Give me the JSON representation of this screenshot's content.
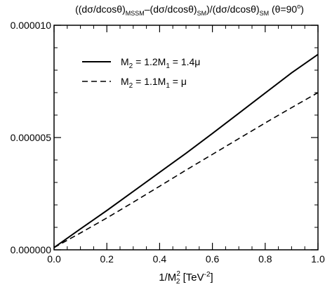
{
  "chart_data": {
    "type": "line",
    "title": {
      "open": "((dσ/dcosθ)",
      "sub_mssm": "MSSM",
      "mid": "–(dσ/dcosθ)",
      "sub_sm1": "SM",
      "div": ")/(dσ/dcosθ)",
      "sub_sm2": "SM",
      "cond_open": "(θ=90",
      "cond_sup": "o",
      "cond_close": ")"
    },
    "xlabel": {
      "main": "1/M",
      "sub": "2",
      "sup": "2",
      "units_open": " [TeV",
      "units_sup": "-2",
      "units_close": "]"
    },
    "xlim": [
      0.0,
      1.0
    ],
    "ylim": [
      0.0,
      1e-05
    ],
    "x_ticks": [
      {
        "v": 0.0,
        "label": "0.0"
      },
      {
        "v": 0.2,
        "label": "0.2"
      },
      {
        "v": 0.4,
        "label": "0.4"
      },
      {
        "v": 0.6,
        "label": "0.6"
      },
      {
        "v": 0.8,
        "label": "0.8"
      },
      {
        "v": 1.0,
        "label": "1.0"
      }
    ],
    "y_ticks": [
      {
        "v": 0.0,
        "label": "0.000000"
      },
      {
        "v": 5e-06,
        "label": "0.000005"
      },
      {
        "v": 1e-05,
        "label": "0.000010"
      }
    ],
    "legend_position": "top-left",
    "series": [
      {
        "name": "M2 = 1.2M1 = 1.4μ",
        "legend": {
          "p1": "M",
          "s1": "2",
          "p2": " = 1.2M",
          "s2": "1",
          "p3": " = 1.4μ"
        },
        "style": "solid",
        "x": [
          0.0,
          0.1,
          0.2,
          0.3,
          0.4,
          0.5,
          0.6,
          0.7,
          0.8,
          0.9,
          1.0
        ],
        "y": [
          1e-07,
          9.3e-07,
          1.75e-06,
          2.6e-06,
          3.45e-06,
          4.3e-06,
          5.18e-06,
          6.08e-06,
          6.98e-06,
          7.88e-06,
          8.7e-06
        ]
      },
      {
        "name": "M2 = 1.1M1 = μ",
        "legend": {
          "p1": "M",
          "s1": "2",
          "p2": " = 1.1M",
          "s2": "1",
          "p3": " = μ"
        },
        "style": "dashed",
        "x": [
          0.0,
          0.1,
          0.2,
          0.3,
          0.4,
          0.5,
          0.6,
          0.7,
          0.8,
          0.9,
          1.0
        ],
        "y": [
          1e-07,
          7.5e-07,
          1.42e-06,
          2.12e-06,
          2.83e-06,
          3.55e-06,
          4.25e-06,
          4.95e-06,
          5.65e-06,
          6.33e-06,
          7e-06
        ]
      }
    ]
  }
}
